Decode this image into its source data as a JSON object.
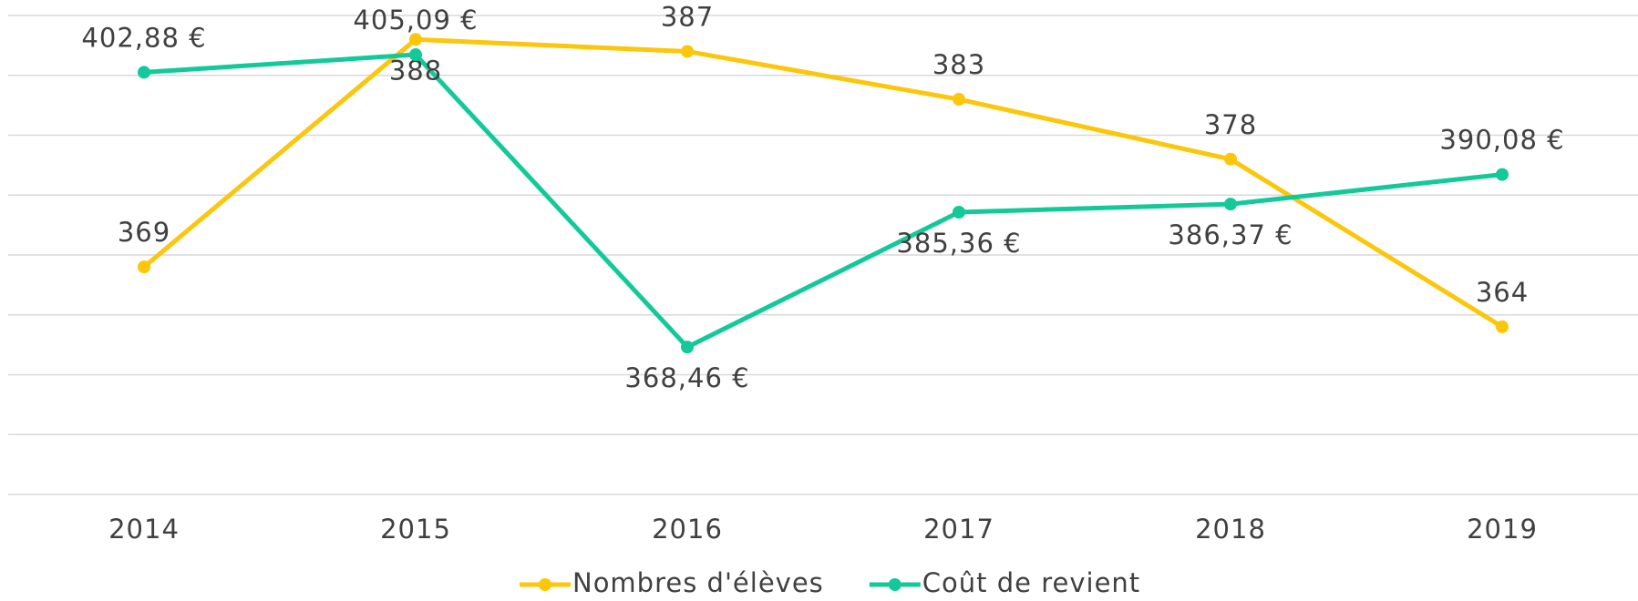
{
  "chart_data": {
    "type": "line",
    "categories": [
      "2014",
      "2015",
      "2016",
      "2017",
      "2018",
      "2019"
    ],
    "series": [
      {
        "name": "Nombres d'élèves",
        "color": "#fcc60a",
        "values": [
          369,
          388,
          387,
          383,
          378,
          364
        ]
      },
      {
        "name": "Coût de revient",
        "color": "#13c99a",
        "axis": "y2",
        "values": [
          402.88,
          405.09,
          368.46,
          385.36,
          386.37,
          390.08
        ],
        "value_labels": [
          "402,88 €",
          "405,09 €",
          "368,46 €",
          "385,36 €",
          "386,37 €",
          "390,08 €"
        ]
      }
    ],
    "ylim": [
      350,
      390
    ],
    "yticks": [
      350,
      355,
      360,
      365,
      370,
      375,
      380,
      385,
      390
    ],
    "y2lim": [
      350,
      410
    ],
    "grid": true,
    "legend": "bottom"
  }
}
